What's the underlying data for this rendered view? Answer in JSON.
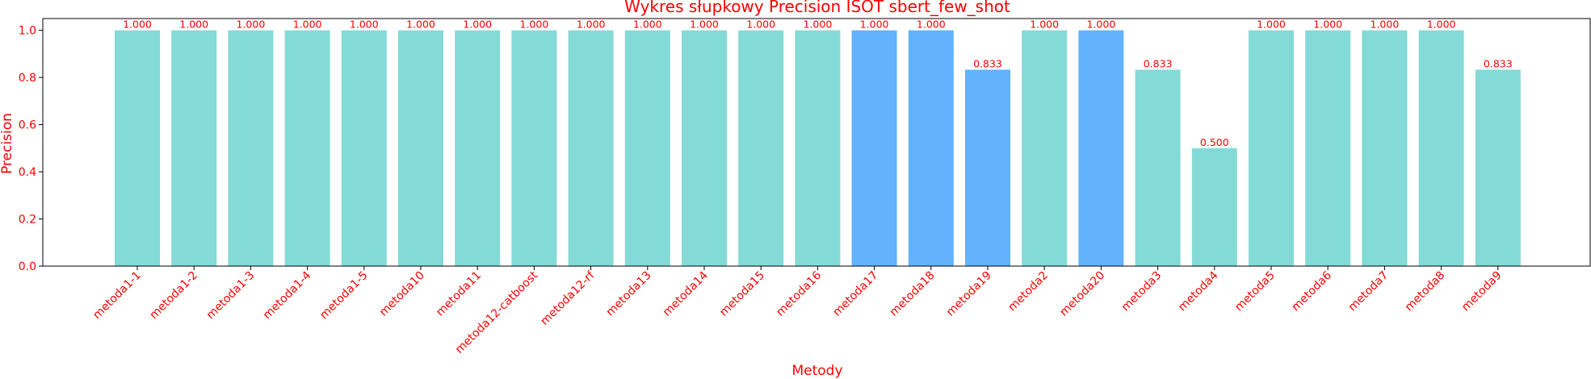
{
  "chart_data": {
    "type": "bar",
    "title": "Wykres słupkowy Precision ISOT sbert_few_shot",
    "xlabel": "Metody",
    "ylabel": "Precision",
    "ylim": [
      0,
      1.05
    ],
    "yticks": [
      "0.0",
      "0.2",
      "0.4",
      "0.6",
      "0.8",
      "1.0"
    ],
    "grid": false,
    "legend": "none",
    "categories": [
      "metoda1-1",
      "metoda1-2",
      "metoda1-3",
      "metoda1-4",
      "metoda1-5",
      "metoda10",
      "metoda11",
      "metoda12-catboost",
      "metoda12-rf",
      "metoda13",
      "metoda14",
      "metoda15",
      "metoda16",
      "metoda17",
      "metoda18",
      "metoda19",
      "metoda2",
      "metoda20",
      "metoda3",
      "metoda4",
      "metoda5",
      "metoda6",
      "metoda7",
      "metoda8",
      "metoda9"
    ],
    "values": [
      1.0,
      1.0,
      1.0,
      1.0,
      1.0,
      1.0,
      1.0,
      1.0,
      1.0,
      1.0,
      1.0,
      1.0,
      1.0,
      1.0,
      1.0,
      0.833,
      1.0,
      1.0,
      0.833,
      0.5,
      1.0,
      1.0,
      1.0,
      1.0,
      0.833
    ],
    "value_labels": [
      "1.000",
      "1.000",
      "1.000",
      "1.000",
      "1.000",
      "1.000",
      "1.000",
      "1.000",
      "1.000",
      "1.000",
      "1.000",
      "1.000",
      "1.000",
      "1.000",
      "1.000",
      "0.833",
      "1.000",
      "1.000",
      "0.833",
      "0.500",
      "1.000",
      "1.000",
      "1.000",
      "1.000",
      "0.833"
    ],
    "highlighted": [
      false,
      false,
      false,
      false,
      false,
      false,
      false,
      false,
      false,
      false,
      false,
      false,
      false,
      true,
      true,
      true,
      false,
      true,
      false,
      false,
      false,
      false,
      false,
      false,
      false
    ],
    "colors": {
      "bar": "#84dad6",
      "bar_highlight": "#62b2fd",
      "text": "#ff0000",
      "axis": "#000000"
    }
  }
}
